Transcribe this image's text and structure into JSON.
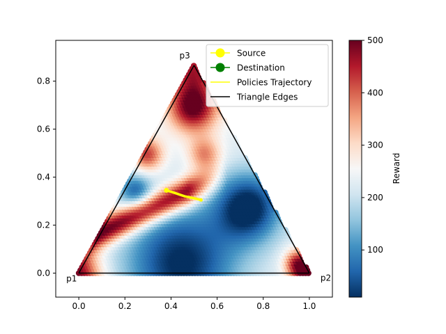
{
  "chart_data": {
    "type": "scatter",
    "title": "",
    "xlabel": "",
    "ylabel": "",
    "xlim": [
      -0.1,
      1.1
    ],
    "ylim": [
      -0.1,
      0.97
    ],
    "x_ticks": [
      0.0,
      0.2,
      0.4,
      0.6,
      0.8,
      1.0
    ],
    "y_ticks": [
      0.0,
      0.2,
      0.4,
      0.6,
      0.8
    ],
    "x_tick_labels": [
      "0.0",
      "0.2",
      "0.4",
      "0.6",
      "0.8",
      "1.0"
    ],
    "y_tick_labels": [
      "0.0",
      "0.2",
      "0.4",
      "0.6",
      "0.8"
    ],
    "vertices": [
      {
        "label": "p1",
        "x": 0.0,
        "y": 0.0
      },
      {
        "label": "p2",
        "x": 1.0,
        "y": 0.0
      },
      {
        "label": "p3",
        "x": 0.5,
        "y": 0.866
      }
    ],
    "colorbar": {
      "label": "Reward",
      "min": 10,
      "max": 500,
      "ticks": [
        100,
        200,
        300,
        400,
        500
      ],
      "tick_labels": [
        "100",
        "200",
        "300",
        "400",
        "500"
      ],
      "colormap": [
        "#053061",
        "#2166ac",
        "#4393c3",
        "#92c5de",
        "#d1e5f0",
        "#f7f7f7",
        "#fddbc7",
        "#f4a582",
        "#d6604d",
        "#b2182b",
        "#67001f"
      ]
    },
    "reward_regions_approx": [
      {
        "note": "high reward, left lower band",
        "x": 0.2,
        "y": 0.2,
        "reward": 500
      },
      {
        "note": "high reward, upper cap",
        "x": 0.5,
        "y": 0.7,
        "reward": 480
      },
      {
        "note": "low reward, bottom center",
        "x": 0.48,
        "y": 0.05,
        "reward": 40
      },
      {
        "note": "low reward, right middle",
        "x": 0.72,
        "y": 0.28,
        "reward": 30
      }
    ],
    "trajectory": {
      "name": "Policies Trajectory",
      "color": "#ffff00",
      "x": [
        0.38,
        0.42,
        0.46,
        0.5,
        0.53
      ],
      "y": [
        0.345,
        0.333,
        0.32,
        0.312,
        0.305
      ]
    },
    "source": {
      "name": "Source",
      "x": 0.38,
      "y": 0.345,
      "color": "#ffff00"
    },
    "destination": {
      "name": "Destination",
      "x": 0.53,
      "y": 0.305,
      "color": "#008000"
    },
    "legend": {
      "position": "top-right",
      "entries": [
        {
          "label": "Source",
          "kind": "marker-line",
          "color": "#ffff00"
        },
        {
          "label": "Destination",
          "kind": "marker-line",
          "color": "#008000"
        },
        {
          "label": "Policies Trajectory",
          "kind": "line",
          "color": "#ffff00"
        },
        {
          "label": "Triangle Edges",
          "kind": "line",
          "color": "#000000"
        }
      ]
    },
    "grid": false
  }
}
